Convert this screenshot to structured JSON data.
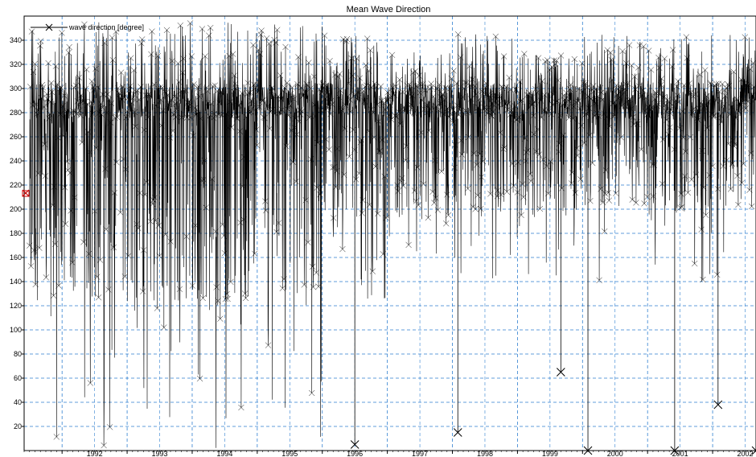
{
  "chart_data": {
    "type": "line",
    "title": "Mean Wave Direction",
    "xlabel": "",
    "ylabel": "",
    "legend": {
      "entries": [
        "wave direction [degree]"
      ],
      "placement": "top-left"
    },
    "grid": true,
    "marker": "x",
    "xlim": [
      "1991-06-01",
      "2002-09-01"
    ],
    "ylim": [
      0,
      360
    ],
    "x_ticks": [
      "1992",
      "1993",
      "1994",
      "1995",
      "1996",
      "1997",
      "1998",
      "1999",
      "2000",
      "2001",
      "2002"
    ],
    "y_ticks": [
      20,
      40,
      60,
      80,
      100,
      120,
      140,
      160,
      180,
      200,
      220,
      240,
      260,
      280,
      300,
      320,
      340
    ],
    "series": [
      {
        "name": "wave direction [degree]",
        "typical_band": [
          275,
          305
        ],
        "periods": [
          {
            "start": "1991-07",
            "end": "1992-12",
            "low": 0,
            "high": 355
          },
          {
            "start": "1993-01",
            "end": "1994-12",
            "low": 0,
            "high": 355
          },
          {
            "start": "1995-01",
            "end": "1995-12",
            "low": 10,
            "high": 355
          },
          {
            "start": "1996-01",
            "end": "1996-12",
            "low": 125,
            "high": 345
          },
          {
            "start": "1997-01",
            "end": "1997-12",
            "low": 125,
            "high": 330
          },
          {
            "start": "1998-01",
            "end": "1998-12",
            "low": 135,
            "high": 345
          },
          {
            "start": "1999-01",
            "end": "1999-12",
            "low": 135,
            "high": 330
          },
          {
            "start": "2000-01",
            "end": "2000-12",
            "low": 140,
            "high": 345
          },
          {
            "start": "2001-01",
            "end": "2001-12",
            "low": 130,
            "high": 345
          },
          {
            "start": "2002-01",
            "end": "2002-08",
            "low": 135,
            "high": 345
          }
        ],
        "notable_outliers": [
          {
            "x": "1996-07",
            "y": 5
          },
          {
            "x": "1998-02",
            "y": 15
          },
          {
            "x": "1999-09",
            "y": 65
          },
          {
            "x": "2000-02",
            "y": 0
          },
          {
            "x": "2001-06",
            "y": 0
          },
          {
            "x": "2002-02",
            "y": 38
          },
          {
            "x": "2002-09",
            "y": 0
          }
        ]
      }
    ],
    "colors": {
      "line": "#000000",
      "grid": "#2f7fd0",
      "axis": "#000000",
      "legend_marker": "#cc0000"
    }
  }
}
